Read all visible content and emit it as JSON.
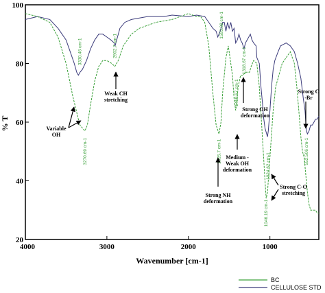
{
  "chart_data": {
    "type": "line",
    "xlabel": "Wavenumber [cm-1]",
    "ylabel": "% T",
    "xlim": [
      4000,
      400
    ],
    "ylim": [
      20,
      100
    ],
    "x_ticks": [
      "4000",
      "3000",
      "2000",
      "1000"
    ],
    "y_ticks": [
      "20",
      "40",
      "60",
      "80",
      "100"
    ],
    "grid": false,
    "legend_position": "bottom-right",
    "series": [
      {
        "name": "BC",
        "color": "#3aa039",
        "dashed": true,
        "points": [
          [
            4000,
            97
          ],
          [
            3850,
            96
          ],
          [
            3700,
            94
          ],
          [
            3600,
            89
          ],
          [
            3500,
            80
          ],
          [
            3420,
            69
          ],
          [
            3350,
            61
          ],
          [
            3330,
            59
          ],
          [
            3300,
            58
          ],
          [
            3270,
            57
          ],
          [
            3240,
            59
          ],
          [
            3200,
            66
          ],
          [
            3150,
            74
          ],
          [
            3100,
            79
          ],
          [
            3050,
            81
          ],
          [
            3000,
            81
          ],
          [
            2940,
            80
          ],
          [
            2902,
            79
          ],
          [
            2860,
            81
          ],
          [
            2800,
            86
          ],
          [
            2700,
            90
          ],
          [
            2600,
            92
          ],
          [
            2400,
            94
          ],
          [
            2200,
            95
          ],
          [
            2000,
            97
          ],
          [
            1900,
            96
          ],
          [
            1850,
            96
          ],
          [
            1800,
            94
          ],
          [
            1750,
            86
          ],
          [
            1700,
            70
          ],
          [
            1660,
            59
          ],
          [
            1625,
            56
          ],
          [
            1600,
            60
          ],
          [
            1580,
            70
          ],
          [
            1560,
            76
          ],
          [
            1540,
            82
          ],
          [
            1510,
            86
          ],
          [
            1490,
            82
          ],
          [
            1460,
            76
          ],
          [
            1440,
            68
          ],
          [
            1420,
            64
          ],
          [
            1410,
            66
          ],
          [
            1390,
            72
          ],
          [
            1360,
            76
          ],
          [
            1330,
            76
          ],
          [
            1300,
            77
          ],
          [
            1250,
            77
          ],
          [
            1230,
            79
          ],
          [
            1200,
            81
          ],
          [
            1160,
            80
          ],
          [
            1130,
            72
          ],
          [
            1110,
            63
          ],
          [
            1080,
            49
          ],
          [
            1060,
            40
          ],
          [
            1046,
            34
          ],
          [
            1030,
            36
          ],
          [
            1000,
            48
          ],
          [
            960,
            64
          ],
          [
            930,
            72
          ],
          [
            900,
            75
          ],
          [
            850,
            80
          ],
          [
            800,
            82
          ],
          [
            750,
            84
          ],
          [
            700,
            80
          ],
          [
            670,
            72
          ],
          [
            640,
            62
          ],
          [
            620,
            55
          ],
          [
            600,
            50
          ],
          [
            580,
            48
          ],
          [
            560,
            42
          ],
          [
            540,
            36
          ],
          [
            520,
            32
          ],
          [
            500,
            30
          ],
          [
            480,
            30
          ],
          [
            460,
            30
          ],
          [
            440,
            30
          ],
          [
            420,
            29
          ],
          [
            400,
            29
          ]
        ]
      },
      {
        "name": "CELLULOSE STD",
        "color": "#3a3a7a",
        "dashed": false,
        "points": [
          [
            4000,
            95
          ],
          [
            3850,
            96
          ],
          [
            3700,
            95
          ],
          [
            3600,
            92
          ],
          [
            3500,
            88
          ],
          [
            3450,
            84
          ],
          [
            3400,
            80
          ],
          [
            3370,
            77
          ],
          [
            3350,
            76
          ],
          [
            3330,
            77
          ],
          [
            3300,
            78
          ],
          [
            3250,
            81
          ],
          [
            3200,
            85
          ],
          [
            3150,
            88
          ],
          [
            3100,
            90
          ],
          [
            3050,
            90
          ],
          [
            3000,
            89
          ],
          [
            2950,
            88
          ],
          [
            2910,
            87
          ],
          [
            2900,
            86
          ],
          [
            2880,
            88
          ],
          [
            2840,
            92
          ],
          [
            2780,
            94
          ],
          [
            2700,
            95
          ],
          [
            2500,
            96
          ],
          [
            2300,
            96
          ],
          [
            2200,
            96.5
          ],
          [
            2000,
            96
          ],
          [
            1900,
            96.5
          ],
          [
            1800,
            96
          ],
          [
            1750,
            94
          ],
          [
            1700,
            92
          ],
          [
            1660,
            91
          ],
          [
            1640,
            89
          ],
          [
            1610,
            91
          ],
          [
            1580,
            94
          ],
          [
            1560,
            94
          ],
          [
            1540,
            91
          ],
          [
            1520,
            94
          ],
          [
            1500,
            92
          ],
          [
            1480,
            94
          ],
          [
            1460,
            91
          ],
          [
            1440,
            92
          ],
          [
            1420,
            87
          ],
          [
            1400,
            88
          ],
          [
            1380,
            90
          ],
          [
            1360,
            88
          ],
          [
            1340,
            87
          ],
          [
            1318,
            85
          ],
          [
            1300,
            87
          ],
          [
            1280,
            88
          ],
          [
            1260,
            89
          ],
          [
            1240,
            90
          ],
          [
            1220,
            88
          ],
          [
            1200,
            87
          ],
          [
            1170,
            86
          ],
          [
            1160,
            82
          ],
          [
            1130,
            80
          ],
          [
            1110,
            72
          ],
          [
            1090,
            66
          ],
          [
            1080,
            62
          ],
          [
            1060,
            58
          ],
          [
            1040,
            56
          ],
          [
            1030,
            55
          ],
          [
            1020,
            57
          ],
          [
            1000,
            64
          ],
          [
            980,
            72
          ],
          [
            960,
            78
          ],
          [
            940,
            81
          ],
          [
            900,
            84
          ],
          [
            870,
            86
          ],
          [
            800,
            87
          ],
          [
            750,
            86
          ],
          [
            700,
            84
          ],
          [
            660,
            80
          ],
          [
            620,
            75
          ],
          [
            590,
            68
          ],
          [
            570,
            64
          ],
          [
            560,
            60
          ],
          [
            552,
            57
          ],
          [
            540,
            56
          ],
          [
            520,
            57
          ],
          [
            500,
            59
          ],
          [
            480,
            59
          ],
          [
            460,
            60
          ],
          [
            440,
            61
          ],
          [
            420,
            61
          ],
          [
            400,
            62
          ]
        ]
      }
    ],
    "peak_labels": [
      {
        "text": "3330.46 cm-1",
        "x": 3330,
        "y": 84
      },
      {
        "text": "3270.69 cm-1",
        "x": 3270,
        "y": 50
      },
      {
        "text": "2902.7 cm-1",
        "x": 2902,
        "y": 86
      },
      {
        "text": "1593.88 cm-1",
        "x": 1593,
        "y": 93
      },
      {
        "text": "1318.67 cm-1",
        "x": 1318,
        "y": 81
      },
      {
        "text": "1625.7 cm-1",
        "x": 1625,
        "y": 50
      },
      {
        "text": "1410.67 cm-1",
        "x": 1410,
        "y": 70
      },
      {
        "text": "1024.62 cm-1",
        "x": 1024,
        "y": 45
      },
      {
        "text": "1046.19 cm-1",
        "x": 1046,
        "y": 29
      },
      {
        "text": "552.506 cm-1",
        "x": 552,
        "y": 50
      }
    ],
    "annotations": [
      {
        "lines": [
          "Variable",
          "OH"
        ]
      },
      {
        "lines": [
          "Weak CH",
          "stretching"
        ]
      },
      {
        "lines": [
          "Strong OH",
          "deformation"
        ]
      },
      {
        "lines": [
          "Medium -",
          "Weak OH",
          "deformation"
        ]
      },
      {
        "lines": [
          "Strong NH",
          "deformation"
        ]
      },
      {
        "lines": [
          "Strong C-O",
          "stretching"
        ]
      },
      {
        "lines": [
          "Strong C",
          "-Br"
        ]
      }
    ]
  }
}
